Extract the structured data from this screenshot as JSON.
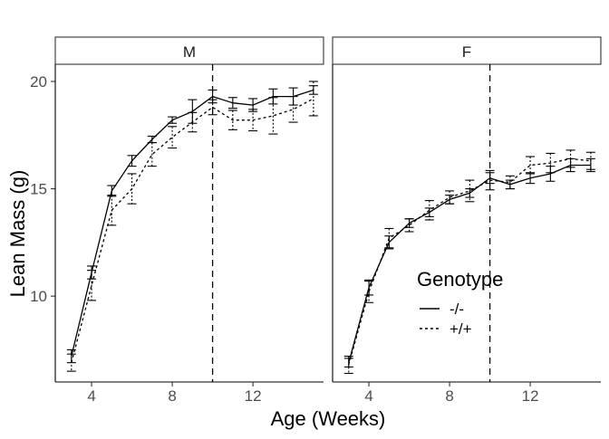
{
  "chart_data": {
    "type": "line",
    "facet_layout": "1 row x 2 columns",
    "xlabel": "Age (Weeks)",
    "ylabel": "Lean Mass (g)",
    "xlim": [
      2.2,
      15.5
    ],
    "ylim": [
      6.0,
      20.8
    ],
    "x_ticks": [
      4,
      8,
      12
    ],
    "y_ticks": [
      10,
      15,
      20
    ],
    "reference_line": {
      "x": 10,
      "style": "dashed"
    },
    "grid": false,
    "legend": {
      "title": "Genotype",
      "placement": "inside lower-right of panel F",
      "entries": [
        {
          "label": "-/-",
          "line": "solid"
        },
        {
          "label": "+/+",
          "line": "dotted"
        }
      ]
    },
    "x": [
      3,
      4,
      5,
      6,
      7,
      8,
      9,
      10,
      11,
      12,
      13,
      14,
      15
    ],
    "panels": [
      {
        "label": "M",
        "series": [
          {
            "genotype": "-/-",
            "values": [
              7.2,
              11.1,
              14.9,
              16.3,
              17.3,
              18.2,
              18.6,
              19.3,
              19.0,
              18.9,
              19.3,
              19.3,
              19.6
            ],
            "errors": [
              0.3,
              0.3,
              0.25,
              0.25,
              0.15,
              0.15,
              0.55,
              0.3,
              0.25,
              0.3,
              0.35,
              0.4,
              0.2
            ]
          },
          {
            "genotype": "+/+",
            "values": [
              6.9,
              10.5,
              14.0,
              15.0,
              16.6,
              17.4,
              18.1,
              18.8,
              18.2,
              18.2,
              18.4,
              18.7,
              19.2
            ],
            "errors": [
              0.4,
              0.7,
              0.7,
              0.7,
              0.55,
              0.5,
              0.45,
              0.35,
              0.45,
              0.5,
              0.85,
              0.6,
              0.8
            ]
          }
        ]
      },
      {
        "label": "F",
        "series": [
          {
            "genotype": "-/-",
            "values": [
              6.9,
              10.4,
              12.5,
              13.4,
              13.9,
              14.5,
              14.8,
              15.5,
              15.2,
              15.5,
              15.7,
              16.1,
              16.1
            ],
            "errors": [
              0.2,
              0.35,
              0.3,
              0.2,
              0.2,
              0.2,
              0.2,
              0.25,
              0.2,
              0.25,
              0.35,
              0.3,
              0.3
            ]
          },
          {
            "genotype": "+/+",
            "values": [
              6.8,
              10.2,
              12.7,
              13.3,
              14.0,
              14.6,
              14.9,
              15.4,
              15.3,
              16.1,
              16.2,
              16.4,
              16.3
            ],
            "errors": [
              0.4,
              0.5,
              0.45,
              0.3,
              0.45,
              0.3,
              0.5,
              0.45,
              0.3,
              0.4,
              0.45,
              0.4,
              0.4
            ]
          }
        ]
      }
    ]
  }
}
